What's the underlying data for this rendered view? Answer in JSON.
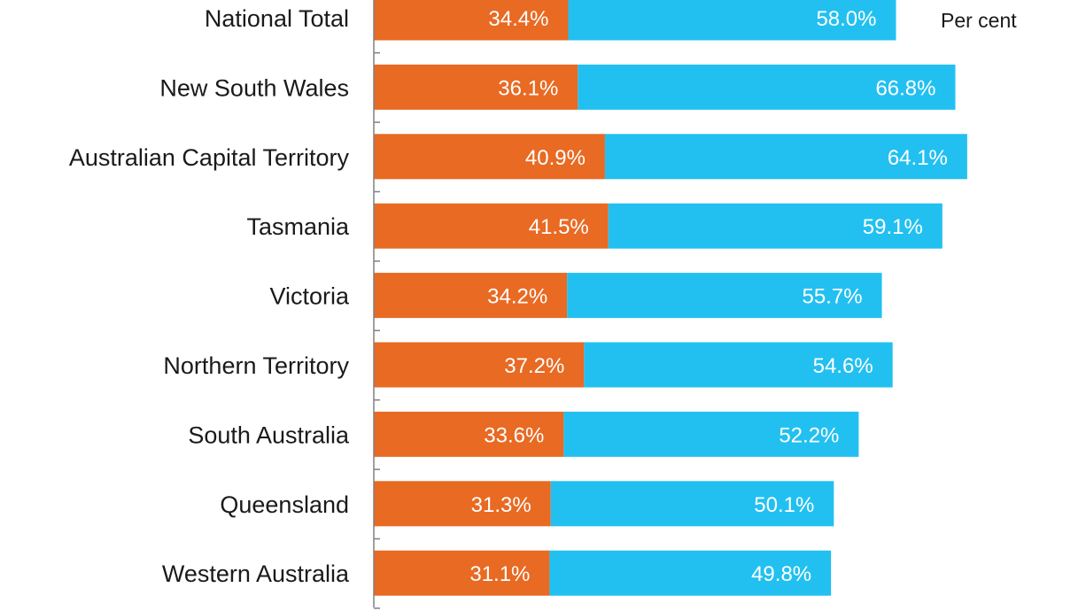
{
  "chart_data": {
    "type": "bar",
    "orientation": "horizontal",
    "stacked": true,
    "unit_label": "Per cent",
    "categories": [
      "National Total",
      "New South Wales",
      "Australian Capital Territory",
      "Tasmania",
      "Victoria",
      "Northern Territory",
      "South Australia",
      "Queensland",
      "Western Australia"
    ],
    "series": [
      {
        "color": "#E86A23",
        "values": [
          34.4,
          36.1,
          40.9,
          41.5,
          34.2,
          37.2,
          33.6,
          31.3,
          31.1
        ],
        "value_labels": [
          "34.4%",
          "36.1%",
          "40.9%",
          "41.5%",
          "34.2%",
          "37.2%",
          "33.6%",
          "31.3%",
          "31.1%"
        ]
      },
      {
        "color": "#22C0F0",
        "values": [
          58.0,
          66.8,
          64.1,
          59.1,
          55.7,
          54.6,
          52.2,
          50.1,
          49.8
        ],
        "value_labels": [
          "58.0%",
          "66.8%",
          "64.1%",
          "59.1%",
          "55.7%",
          "54.6%",
          "52.2%",
          "50.1%",
          "49.8%"
        ]
      }
    ],
    "grid": false,
    "legend": "none"
  }
}
